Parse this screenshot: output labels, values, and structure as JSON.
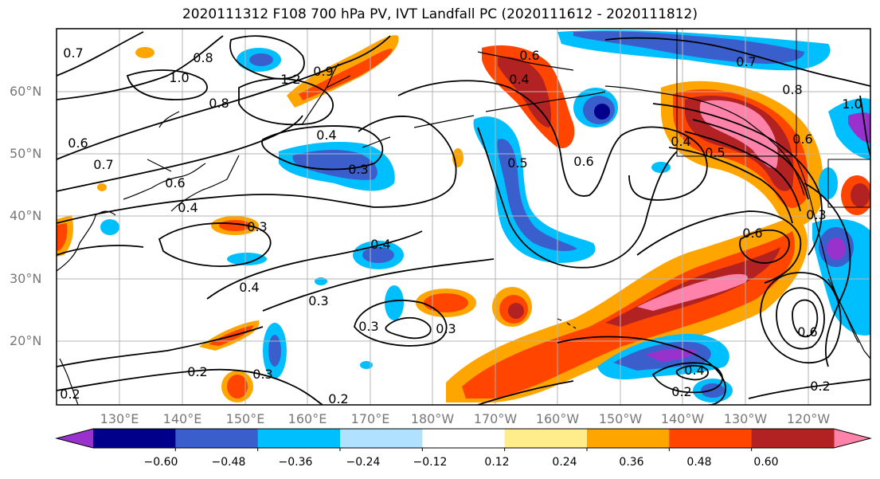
{
  "title": "2020111312 F108 700 hPa PV, IVT Landfall PC (2020111612 - 2020111812)",
  "lat_labels": [
    "60°N",
    "50°N",
    "40°N",
    "30°N",
    "20°N"
  ],
  "lon_labels": [
    "130°E",
    "140°E",
    "150°E",
    "160°E",
    "170°E",
    "180°W",
    "170°W",
    "160°W",
    "150°W",
    "140°W",
    "130°W",
    "120°W"
  ],
  "colorbar": {
    "ticks": [
      "−0.60",
      "−0.48",
      "−0.36",
      "−0.24",
      "−0.12",
      "0.12",
      "0.24",
      "0.36",
      "0.48",
      "0.60"
    ],
    "colors": [
      "#9932cc",
      "#00008b",
      "#3a5fcd",
      "#00bfff",
      "#b0e2ff",
      "#ffffff",
      "#ffec8b",
      "#ffa500",
      "#ff4500",
      "#b22222",
      "#ff82ab"
    ]
  },
  "contour_labels": [
    "0.7",
    "0.8",
    "1.0",
    "1.2",
    "0.9",
    "0.8",
    "0.6",
    "0.7",
    "0.6",
    "0.4",
    "0.4",
    "0.3",
    "0.3",
    "0.4",
    "0.4",
    "0.3",
    "0.3",
    "0.3",
    "0.5",
    "0.6",
    "0.4",
    "0.6",
    "0.6",
    "0.3",
    "0.7",
    "0.8",
    "1.0",
    "0.4",
    "0.5",
    "0.6",
    "0.2",
    "0.2",
    "0.2",
    "0.4",
    "0.2",
    "0.2",
    "0.6",
    "0.3"
  ]
}
